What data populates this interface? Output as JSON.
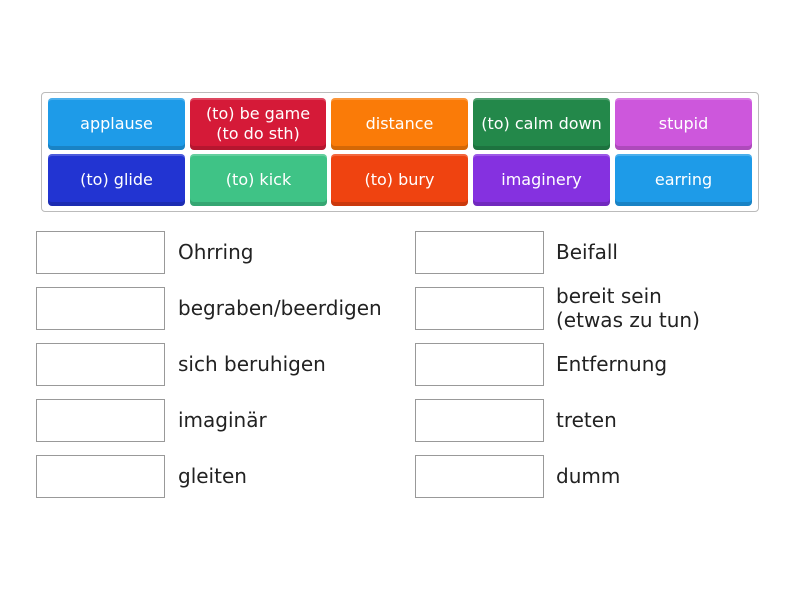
{
  "tiles": [
    {
      "label": "applause",
      "color": "#1e9be8"
    },
    {
      "label": "(to) be game (to do sth)",
      "color": "#d51a38"
    },
    {
      "label": "distance",
      "color": "#fa7b08"
    },
    {
      "label": "(to) calm down",
      "color": "#23884a"
    },
    {
      "label": "stupid",
      "color": "#cd57dc"
    },
    {
      "label": "(to) glide",
      "color": "#2234d2"
    },
    {
      "label": "(to) kick",
      "color": "#3fc386"
    },
    {
      "label": "(to) bury",
      "color": "#ef4310"
    },
    {
      "label": "imaginery",
      "color": "#8531e0"
    },
    {
      "label": "earring",
      "color": "#1e9be8"
    }
  ],
  "targets": [
    {
      "label": "Ohrring"
    },
    {
      "label": "begraben/beerdigen"
    },
    {
      "label": "sich beruhigen"
    },
    {
      "label": "imaginär"
    },
    {
      "label": "gleiten"
    },
    {
      "label": "Beifall"
    },
    {
      "label": "bereit sein (etwas zu tun)"
    },
    {
      "label": "Entfernung"
    },
    {
      "label": "treten"
    },
    {
      "label": "dumm"
    }
  ]
}
